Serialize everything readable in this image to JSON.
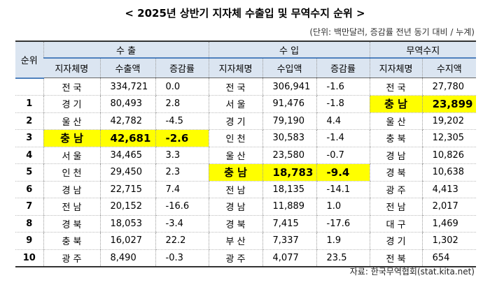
{
  "title": "< 2025년 상반기 지자체 수출입 및 무역수지 순위 >",
  "unit_note": "(단위: 백만달러, 증감률 전년 동기 대비 / 누계)",
  "table": {
    "group_header": [
      "순위",
      "수 출",
      "수 입",
      "무역수지"
    ],
    "sub_header": [
      "지자체명",
      "수출액",
      "증감률",
      "지자체명",
      "수입액",
      "증감률",
      "지자체명",
      "수지액"
    ],
    "rows": [
      [
        "",
        "전 국",
        "334,721",
        "0.0",
        "전 국",
        "306,941",
        "-1.6",
        "전 국",
        "27,780"
      ],
      [
        "1",
        "경 기",
        "80,493",
        "2.8",
        "서 울",
        "91,476",
        "-1.8",
        "충 남",
        "23,899"
      ],
      [
        "2",
        "울 산",
        "42,782",
        "-4.5",
        "경 기",
        "79,190",
        "4.4",
        "울 산",
        "19,202"
      ],
      [
        "3",
        "충 남",
        "42,681",
        "-2.6",
        "인 천",
        "30,583",
        "-1.4",
        "충 북",
        "12,305"
      ],
      [
        "4",
        "서 울",
        "34,465",
        "3.3",
        "울 산",
        "23,580",
        "-0.7",
        "경 남",
        "10,826"
      ],
      [
        "5",
        "인 천",
        "29,450",
        "2.3",
        "충 남",
        "18,783",
        "-9.4",
        "경 북",
        "10,638"
      ],
      [
        "6",
        "경 남",
        "22,715",
        "7.4",
        "전 남",
        "18,135",
        "-14.1",
        "광 주",
        "4,413"
      ],
      [
        "7",
        "전 남",
        "20,152",
        "-16.6",
        "경 남",
        "11,889",
        "1.0",
        "전 남",
        "2,017"
      ],
      [
        "8",
        "경 북",
        "18,053",
        "-3.4",
        "경 북",
        "7,415",
        "-17.6",
        "대 구",
        "1,469"
      ],
      [
        "9",
        "충 북",
        "16,027",
        "22.2",
        "부 산",
        "7,337",
        "1.9",
        "경 기",
        "1,302"
      ],
      [
        "10",
        "광 주",
        "8,490",
        "-0.3",
        "광 주",
        "4,077",
        "23.5",
        "전 북",
        "654"
      ]
    ]
  },
  "source": "자료: 한국무역협회(stat.kita.net)"
}
